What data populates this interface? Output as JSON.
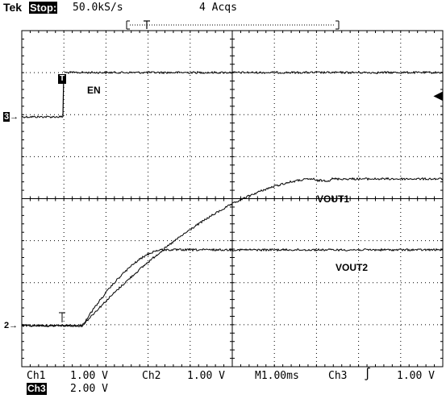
{
  "header": {
    "brand": "Tek",
    "run_state": "Stop:",
    "sample_rate": "50.0kS/s",
    "acquisitions": "4 Acqs"
  },
  "trace_labels": {
    "en": "EN",
    "vout1": "VOUT1",
    "vout2": "VOUT2"
  },
  "channel_markers": {
    "ch3": "3",
    "ch2": "2",
    "trigger": "T"
  },
  "status_bar": {
    "ch1_label": "Ch1",
    "ch1_scale": "1.00 V",
    "ch2_label": "Ch2",
    "ch2_scale": "1.00 V",
    "timebase": "M1.00ms",
    "trigger_source": "Ch3",
    "trigger_slope": "∫",
    "trigger_level": "1.00 V",
    "ch3_label": "Ch3",
    "ch3_scale": "2.00 V"
  }
}
